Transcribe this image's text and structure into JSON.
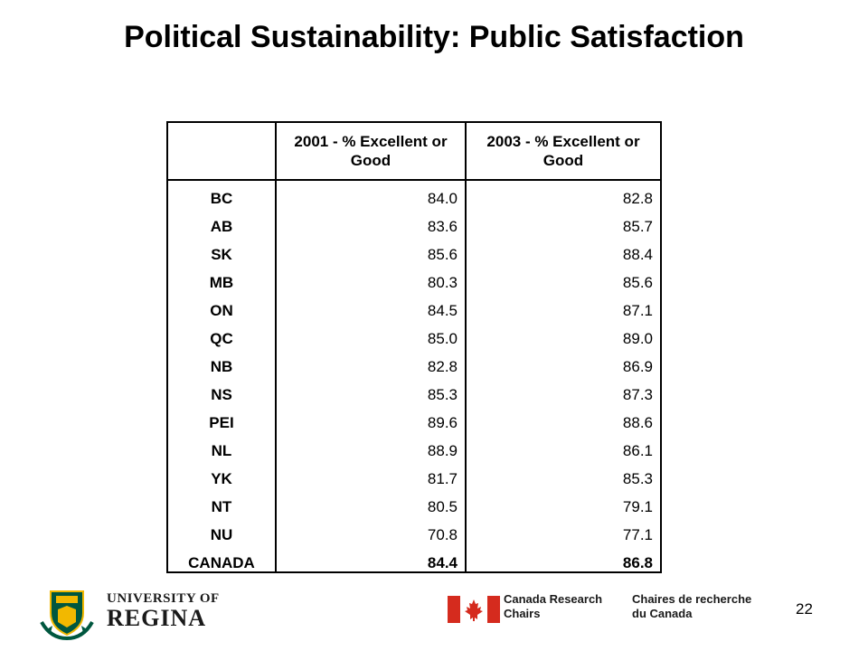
{
  "slide": {
    "title": "Political Sustainability: Public Satisfaction",
    "page_number": "22"
  },
  "table": {
    "headers": [
      "",
      "2001 - % Excellent or Good",
      "2003 - % Excellent or Good"
    ],
    "rows": [
      {
        "region": "BC",
        "y2001": "84.0",
        "y2003": "82.8"
      },
      {
        "region": "AB",
        "y2001": "83.6",
        "y2003": "85.7"
      },
      {
        "region": "SK",
        "y2001": "85.6",
        "y2003": "88.4"
      },
      {
        "region": "MB",
        "y2001": "80.3",
        "y2003": "85.6"
      },
      {
        "region": "ON",
        "y2001": "84.5",
        "y2003": "87.1"
      },
      {
        "region": "QC",
        "y2001": "85.0",
        "y2003": "89.0"
      },
      {
        "region": "NB",
        "y2001": "82.8",
        "y2003": "86.9"
      },
      {
        "region": "NS",
        "y2001": "85.3",
        "y2003": "87.3"
      },
      {
        "region": "PEI",
        "y2001": "89.6",
        "y2003": "88.6"
      },
      {
        "region": "NL",
        "y2001": "88.9",
        "y2003": "86.1"
      },
      {
        "region": "YK",
        "y2001": "81.7",
        "y2003": "85.3"
      },
      {
        "region": "NT",
        "y2001": "80.5",
        "y2003": "79.1"
      },
      {
        "region": "NU",
        "y2001": "70.8",
        "y2003": "77.1"
      },
      {
        "region": "CANADA",
        "y2001": "84.4",
        "y2003": "86.8"
      }
    ]
  },
  "footer": {
    "university_line1": "UNIVERSITY OF",
    "university_line2": "REGINA",
    "crc_en_line1": "Canada Research",
    "crc_en_line2": "Chairs",
    "crc_fr_line1": "Chaires de recherche",
    "crc_fr_line2": "du Canada"
  },
  "colors": {
    "crc_red": "#d52b1e",
    "ur_green": "#00573f",
    "ur_gold": "#f2b800"
  }
}
